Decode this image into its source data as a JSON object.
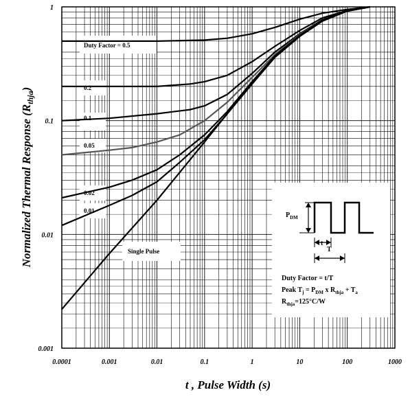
{
  "chart_data": {
    "type": "line",
    "xscale": "log",
    "yscale": "log",
    "xlim": [
      0.0001,
      1000
    ],
    "ylim": [
      0.001,
      1
    ],
    "xlabel": "t , Pulse Width (s)",
    "ylabel": "Normalized Thermal Response (Rthja)",
    "ylabel_main": "Normalized Thermal Response (R",
    "ylabel_sub": "thja",
    "ylabel_close": ")",
    "xticks": [
      "0.0001",
      "0.001",
      "0.01",
      "0.1",
      "1",
      "10",
      "100",
      "1000"
    ],
    "yticks": [
      "0.001",
      "0.01",
      "0.1",
      "1"
    ],
    "grid": true,
    "series": [
      {
        "name": "Duty Factor = 0.5",
        "color": "#000000",
        "x": [
          0.0001,
          0.001,
          0.01,
          0.1,
          0.3,
          1,
          3,
          10,
          30,
          100,
          300
        ],
        "y": [
          0.5,
          0.5,
          0.5,
          0.51,
          0.53,
          0.58,
          0.66,
          0.78,
          0.88,
          0.95,
          1.0
        ]
      },
      {
        "name": "0.2",
        "color": "#000000",
        "x": [
          0.0001,
          0.001,
          0.01,
          0.05,
          0.1,
          0.3,
          1,
          3,
          10,
          30,
          100,
          300
        ],
        "y": [
          0.2,
          0.2,
          0.2,
          0.21,
          0.22,
          0.25,
          0.33,
          0.45,
          0.62,
          0.8,
          0.93,
          1.0
        ]
      },
      {
        "name": "0.1",
        "color": "#000000",
        "x": [
          0.0001,
          0.001,
          0.01,
          0.05,
          0.1,
          0.3,
          1,
          3,
          10,
          30,
          100,
          300
        ],
        "y": [
          0.1,
          0.105,
          0.115,
          0.125,
          0.135,
          0.17,
          0.26,
          0.4,
          0.58,
          0.77,
          0.92,
          1.0
        ]
      },
      {
        "name": "0.05",
        "color": "#555555",
        "x": [
          0.0001,
          0.001,
          0.003,
          0.01,
          0.03,
          0.1,
          0.3,
          1,
          3,
          10,
          30,
          100,
          300
        ],
        "y": [
          0.05,
          0.055,
          0.058,
          0.065,
          0.075,
          0.1,
          0.145,
          0.24,
          0.38,
          0.57,
          0.76,
          0.92,
          1.0
        ]
      },
      {
        "name": "0.02",
        "color": "#000000",
        "x": [
          0.0001,
          0.001,
          0.003,
          0.01,
          0.03,
          0.1,
          0.3,
          1,
          3,
          10,
          30,
          100,
          300
        ],
        "y": [
          0.021,
          0.026,
          0.03,
          0.037,
          0.05,
          0.075,
          0.12,
          0.22,
          0.37,
          0.56,
          0.76,
          0.92,
          1.0
        ]
      },
      {
        "name": "0.01",
        "color": "#000000",
        "x": [
          0.0001,
          0.001,
          0.003,
          0.01,
          0.03,
          0.1,
          0.3,
          1,
          3,
          10,
          30,
          100,
          300
        ],
        "y": [
          0.012,
          0.018,
          0.022,
          0.029,
          0.043,
          0.068,
          0.115,
          0.215,
          0.365,
          0.555,
          0.755,
          0.92,
          1.0
        ]
      },
      {
        "name": "Single Pulse",
        "color": "#000000",
        "x": [
          0.0001,
          0.001,
          0.01,
          0.1,
          0.3,
          1,
          3,
          10,
          30,
          100,
          300
        ],
        "y": [
          0.0022,
          0.0068,
          0.02,
          0.065,
          0.115,
          0.21,
          0.36,
          0.55,
          0.75,
          0.92,
          1.0
        ]
      }
    ],
    "curve_labels": {
      "d05": "Duty Factor = 0.5",
      "d02": "0.2",
      "d01": "0.1",
      "d005": "0.05",
      "d002": "0.02",
      "d001": "0.01",
      "single": "Single Pulse"
    },
    "annotation_box": {
      "pdm_main": "P",
      "pdm_sub": "DM",
      "t_label": "t",
      "T_label": "T",
      "line1": "Duty Factor = t/T",
      "line2_a": "Peak T",
      "line2_j": "j",
      "line2_b": " = P",
      "line2_dm": "DM",
      "line2_c": " x R",
      "line2_thja": "thja",
      "line2_d": " + T",
      "line2_a_sub": "a",
      "line3_a": "R",
      "line3_thja": "thja",
      "line3_b": "=125°C/W"
    }
  }
}
